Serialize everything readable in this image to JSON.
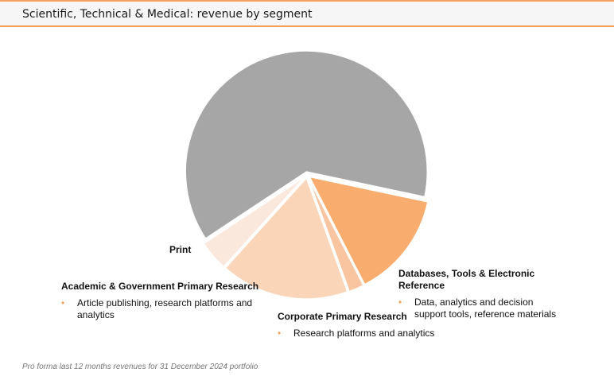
{
  "header": {
    "title": "Scientific, Technical & Medical: revenue by segment"
  },
  "chart_data": {
    "type": "pie",
    "title": "Scientific, Technical & Medical: revenue by segment",
    "slices": [
      {
        "label": "",
        "value": 62,
        "color": "#a6a6a6"
      },
      {
        "label": "Databases, Tools & Electronic Reference",
        "value": 14,
        "color": "#f8ad6e",
        "description": "Data, analytics and decision support tools, reference materials"
      },
      {
        "label": "Corporate Primary Research",
        "value": 2,
        "color": "#f9c4a0",
        "description": "Research platforms and analytics"
      },
      {
        "label": "Academic & Government Primary Research",
        "value": 17,
        "color": "#fbd5b8",
        "description": "Article publishing, research platforms and analytics"
      },
      {
        "label": "Print",
        "value": 4,
        "color": "#fbe8dc"
      }
    ],
    "legend": "none"
  },
  "footnote": "Pro forma last 12 months revenues for 31 December 2024 portfolio"
}
